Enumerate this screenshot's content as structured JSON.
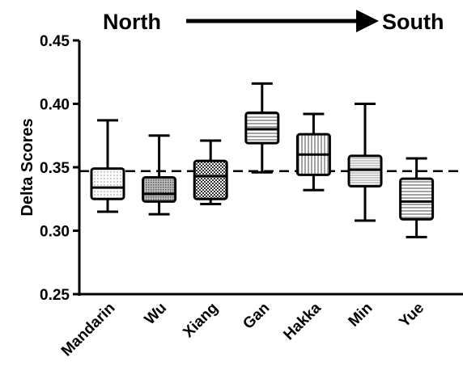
{
  "chart_data": {
    "type": "box",
    "title": "",
    "ylabel": "Delta Scores",
    "xlabel": "",
    "ylim": [
      0.25,
      0.45
    ],
    "yticks": [
      "0.25",
      "0.30",
      "0.35",
      "0.40",
      "0.45"
    ],
    "reference_line": 0.347,
    "annotation": {
      "from": "North",
      "to": "South",
      "arrow": "right"
    },
    "categories": [
      "Mandarin",
      "Wu",
      "Xiang",
      "Gan",
      "Hakka",
      "Min",
      "Yue"
    ],
    "boxes": [
      {
        "label": "Mandarin",
        "min": 0.315,
        "q1": 0.325,
        "median": 0.334,
        "q3": 0.349,
        "max": 0.387,
        "pattern": "dots"
      },
      {
        "label": "Wu",
        "min": 0.313,
        "q1": 0.323,
        "median": 0.329,
        "q3": 0.342,
        "max": 0.375,
        "pattern": "dense-hatch"
      },
      {
        "label": "Xiang",
        "min": 0.321,
        "q1": 0.325,
        "median": 0.343,
        "q3": 0.355,
        "max": 0.371,
        "pattern": "checker"
      },
      {
        "label": "Gan",
        "min": 0.346,
        "q1": 0.369,
        "median": 0.38,
        "q3": 0.393,
        "max": 0.416,
        "pattern": "horizontal-lines"
      },
      {
        "label": "Hakka",
        "min": 0.332,
        "q1": 0.344,
        "median": 0.36,
        "q3": 0.376,
        "max": 0.392,
        "pattern": "vertical-lines"
      },
      {
        "label": "Min",
        "min": 0.308,
        "q1": 0.335,
        "median": 0.348,
        "q3": 0.359,
        "max": 0.4,
        "pattern": "horizontal-fine"
      },
      {
        "label": "Yue",
        "min": 0.295,
        "q1": 0.309,
        "median": 0.323,
        "q3": 0.341,
        "max": 0.357,
        "pattern": "horizontal-lines"
      }
    ]
  }
}
